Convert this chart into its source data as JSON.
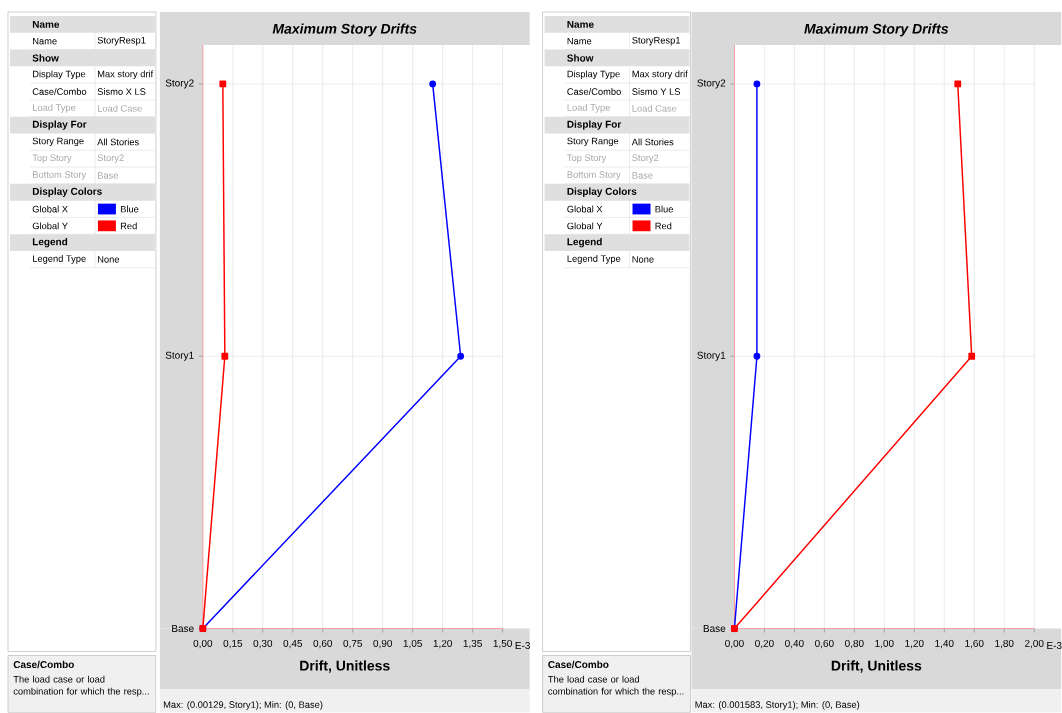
{
  "chart_data": [
    {
      "type": "other",
      "colors": [
        "#0000ff",
        "#ff0000"
      ],
      "annotations": [
        "Name",
        "Name",
        "StoryResp1",
        "Show",
        "Display Type",
        "Max story drif",
        "Case/Combo",
        "Sismo X LS",
        "Load Type",
        "Load Case",
        "Display For",
        "Story Range",
        "All Stories",
        "Top Story",
        "Story2",
        "Bottom Story",
        "Base",
        "Display Colors",
        "Global X",
        "Blue",
        "Global Y",
        "Red",
        "Legend",
        "Legend Type",
        "None",
        "Case/Combo",
        "The load case or load combination for which the resp..."
      ]
    },
    {
      "type": "line",
      "orientation": "horizontal",
      "title": "Maximum Story Drifts",
      "xlabel": "Drift, Unitless",
      "categories": [
        "Story2",
        "Story1",
        "Base"
      ],
      "series": [
        {
          "color": "#0000ff",
          "marker": "circle",
          "values": [
            1.15,
            1.29,
            0
          ]
        },
        {
          "color": "#ff0000",
          "marker": "square",
          "values": [
            0.1,
            0.11,
            0
          ]
        }
      ],
      "xlim": [
        0,
        1.5
      ],
      "xticks": [
        {
          "value": 0,
          "label": "0,00"
        },
        {
          "value": 0.15,
          "label": "0,15"
        },
        {
          "value": 0.3,
          "label": "0,30"
        },
        {
          "value": 0.45,
          "label": "0,45"
        },
        {
          "value": 0.6,
          "label": "0,60"
        },
        {
          "value": 0.75,
          "label": "0,75"
        },
        {
          "value": 0.9,
          "label": "0,90"
        },
        {
          "value": 1.05,
          "label": "1,05"
        },
        {
          "value": 1.2,
          "label": "1,20"
        },
        {
          "value": 1.35,
          "label": "1,35"
        },
        {
          "value": 1.5,
          "label": "1,50"
        }
      ],
      "grid": true,
      "line_style": "solid",
      "annotations": [
        "E-3",
        "Max: (0.00129, Story1);   Min: (0, Base)"
      ]
    },
    {
      "type": "other",
      "colors": [
        "#0000ff",
        "#ff0000"
      ],
      "annotations": [
        "Name",
        "Name",
        "StoryResp1",
        "Show",
        "Display Type",
        "Max story drif",
        "Case/Combo",
        "Sismo Y LS",
        "Load Type",
        "Load Case",
        "Display For",
        "Story Range",
        "All Stories",
        "Top Story",
        "Story2",
        "Bottom Story",
        "Base",
        "Display Colors",
        "Global X",
        "Blue",
        "Global Y",
        "Red",
        "Legend",
        "Legend Type",
        "None",
        "Case/Combo",
        "The load case or load combination for which the resp..."
      ]
    },
    {
      "type": "line",
      "orientation": "horizontal",
      "title": "Maximum Story Drifts",
      "xlabel": "Drift, Unitless",
      "categories": [
        "Story2",
        "Story1",
        "Base"
      ],
      "series": [
        {
          "color": "#0000ff",
          "marker": "circle",
          "values": [
            0.15,
            0.15,
            0
          ]
        },
        {
          "color": "#ff0000",
          "marker": "square",
          "values": [
            1.49,
            1.583,
            0
          ]
        }
      ],
      "xlim": [
        0,
        2
      ],
      "xticks": [
        {
          "value": 0,
          "label": "0,00"
        },
        {
          "value": 0.2,
          "label": "0,20"
        },
        {
          "value": 0.4,
          "label": "0,40"
        },
        {
          "value": 0.6,
          "label": "0,60"
        },
        {
          "value": 0.8,
          "label": "0,80"
        },
        {
          "value": 1.0,
          "label": "1,00"
        },
        {
          "value": 1.2,
          "label": "1,20"
        },
        {
          "value": 1.4,
          "label": "1,40"
        },
        {
          "value": 1.6,
          "label": "1,60"
        },
        {
          "value": 1.8,
          "label": "1,80"
        },
        {
          "value": 2.0,
          "label": "2,00"
        }
      ],
      "grid": true,
      "line_style": "solid",
      "annotations": [
        "E-3",
        "Max: (0.001583, Story1);   Min: (0, Base)"
      ]
    }
  ]
}
